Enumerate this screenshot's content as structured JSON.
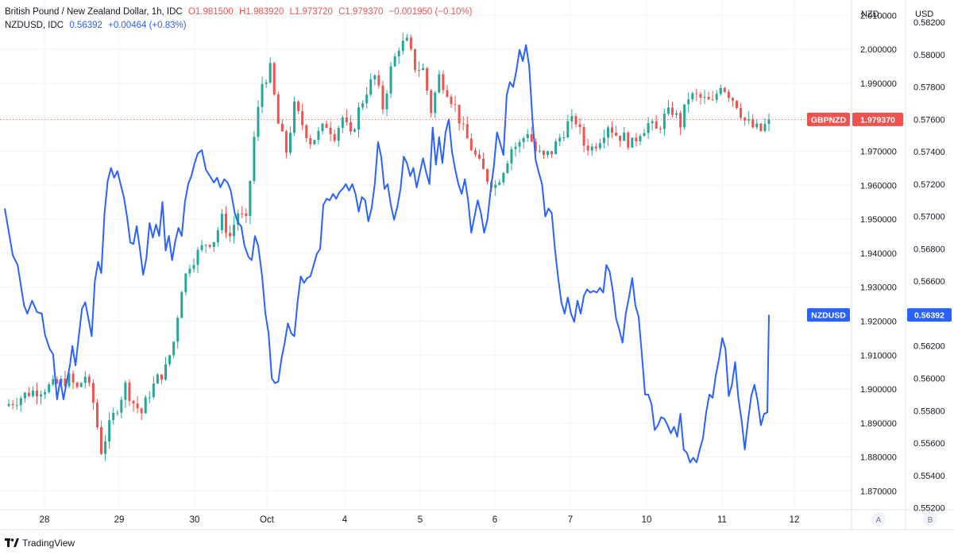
{
  "legend": {
    "main": {
      "name": "British Pound / New Zealand Dollar, 1h, IDC",
      "o": "O1.981500",
      "h": "H1.983920",
      "l": "L1.973720",
      "c": "C1.979370",
      "chg": "−0.001950 (−0.10%)"
    },
    "compare": {
      "name": "NZDUSD, IDC",
      "price": "0.56392",
      "chg": "+0.00464 (+0.83%)"
    }
  },
  "axes": {
    "left_unit": "NZD",
    "right_unit": "USD",
    "scale_a": "A",
    "scale_b": "B"
  },
  "branding": {
    "text": "TradingView"
  },
  "colors": {
    "up": "#26a69a",
    "down": "#ef5350",
    "nzdusd": "#2962ff",
    "grid": "#f0f3fa",
    "text": "#131722"
  },
  "chart_data": {
    "type": "line",
    "title": "British Pound / New Zealand Dollar, 1h, IDC",
    "x_labels": [
      "28",
      "29",
      "30",
      "Oct",
      "4",
      "5",
      "6",
      "7",
      "10",
      "11",
      "12"
    ],
    "gbpnzd": {
      "name": "GBPNZD",
      "axis": "NZD",
      "last_label": "1.979370",
      "ylim": [
        1.8645,
        2.0145
      ],
      "ticks": [
        "2.010000",
        "2.000000",
        "1.990000",
        "1.980000",
        "1.970000",
        "1.960000",
        "1.950000",
        "1.940000",
        "1.930000",
        "1.920000",
        "1.910000",
        "1.900000",
        "1.890000",
        "1.880000",
        "1.870000"
      ],
      "close_anchors": [
        [
          0,
          1.895
        ],
        [
          3,
          1.899
        ],
        [
          6,
          1.901
        ],
        [
          8,
          1.903
        ],
        [
          9,
          1.9
        ],
        [
          10,
          1.904
        ],
        [
          11,
          1.896
        ],
        [
          12,
          1.882
        ],
        [
          13,
          1.889
        ],
        [
          15,
          1.901
        ],
        [
          16,
          1.896
        ],
        [
          17,
          1.893
        ],
        [
          18,
          1.899
        ],
        [
          19,
          1.903
        ],
        [
          20,
          1.906
        ],
        [
          21,
          1.914
        ],
        [
          22,
          1.93
        ],
        [
          23,
          1.937
        ],
        [
          24,
          1.94
        ],
        [
          25,
          1.943
        ],
        [
          26,
          1.944
        ],
        [
          27,
          1.95
        ],
        [
          28,
          1.945
        ],
        [
          29,
          1.952
        ],
        [
          30,
          1.949
        ],
        [
          31,
          1.974
        ],
        [
          32,
          1.99
        ],
        [
          33,
          1.994
        ],
        [
          34,
          1.978
        ],
        [
          35,
          1.97
        ],
        [
          36,
          1.983
        ],
        [
          37,
          1.978
        ],
        [
          38,
          1.973
        ],
        [
          39,
          1.975
        ],
        [
          40,
          1.978
        ],
        [
          41,
          1.975
        ],
        [
          42,
          1.98
        ],
        [
          43,
          1.974
        ],
        [
          44,
          1.982
        ],
        [
          45,
          1.988
        ],
        [
          46,
          1.992
        ],
        [
          47,
          1.983
        ],
        [
          48,
          1.994
        ],
        [
          49,
          2.001
        ],
        [
          50,
          2.002
        ],
        [
          51,
          1.995
        ],
        [
          52,
          1.994
        ],
        [
          53,
          1.982
        ],
        [
          54,
          1.992
        ],
        [
          55,
          1.988
        ],
        [
          56,
          1.983
        ],
        [
          57,
          1.976
        ],
        [
          58,
          1.971
        ],
        [
          59,
          1.966
        ],
        [
          60,
          1.962
        ],
        [
          61,
          1.96
        ],
        [
          62,
          1.965
        ],
        [
          63,
          1.971
        ],
        [
          64,
          1.972
        ],
        [
          65,
          1.976
        ],
        [
          66,
          1.97
        ],
        [
          67,
          1.968
        ],
        [
          68,
          1.97
        ],
        [
          69,
          1.974
        ],
        [
          70,
          1.978
        ],
        [
          71,
          1.979
        ],
        [
          72,
          1.972
        ],
        [
          73,
          1.971
        ],
        [
          74,
          1.974
        ],
        [
          75,
          1.978
        ],
        [
          76,
          1.975
        ],
        [
          77,
          1.974
        ],
        [
          78,
          1.972
        ],
        [
          79,
          1.976
        ],
        [
          80,
          1.978
        ],
        [
          81,
          1.976
        ],
        [
          82,
          1.98
        ],
        [
          83,
          1.982
        ],
        [
          84,
          1.978
        ],
        [
          85,
          1.986
        ],
        [
          86,
          1.986
        ],
        [
          87,
          1.985
        ],
        [
          88,
          1.984
        ],
        [
          89,
          1.99
        ],
        [
          90,
          1.987
        ],
        [
          91,
          1.984
        ],
        [
          92,
          1.979
        ],
        [
          93,
          1.977
        ],
        [
          94,
          1.976
        ],
        [
          95,
          1.979
        ]
      ],
      "last": 1.97937
    },
    "nzdusd": {
      "name": "NZDUSD",
      "axis": "USD",
      "last_label": "0.56392",
      "ylim": [
        0.55188,
        0.58338
      ],
      "ticks": [
        "0.58200",
        "0.58000",
        "0.57800",
        "0.57600",
        "0.57400",
        "0.57200",
        "0.57000",
        "0.56800",
        "0.56600",
        "0.56400",
        "0.56200",
        "0.56000",
        "0.55800",
        "0.55600",
        "0.55400",
        "0.55200"
      ],
      "points": [
        [
          0,
          0.5705
        ],
        [
          1.0,
          0.5676
        ],
        [
          1.6,
          0.567
        ],
        [
          2.4,
          0.5645
        ],
        [
          2.8,
          0.564
        ],
        [
          3.4,
          0.5648
        ],
        [
          4.0,
          0.5641
        ],
        [
          4.6,
          0.564
        ],
        [
          5.0,
          0.5627
        ],
        [
          5.6,
          0.5618
        ],
        [
          6.0,
          0.5615
        ],
        [
          6.5,
          0.5587
        ],
        [
          6.9,
          0.5599
        ],
        [
          7.3,
          0.5587
        ],
        [
          7.7,
          0.5598
        ],
        [
          8.1,
          0.5608
        ],
        [
          8.4,
          0.562
        ],
        [
          8.8,
          0.5608
        ],
        [
          9.2,
          0.5626
        ],
        [
          9.6,
          0.5643
        ],
        [
          10.0,
          0.5647
        ],
        [
          10.4,
          0.5637
        ],
        [
          10.8,
          0.5626
        ],
        [
          11.2,
          0.566
        ],
        [
          11.6,
          0.5672
        ],
        [
          12.0,
          0.5665
        ],
        [
          12.4,
          0.5702
        ],
        [
          12.8,
          0.5722
        ],
        [
          13.2,
          0.573
        ],
        [
          13.6,
          0.5724
        ],
        [
          14.0,
          0.5728
        ],
        [
          14.4,
          0.572
        ],
        [
          14.8,
          0.5712
        ],
        [
          15.2,
          0.57
        ],
        [
          15.6,
          0.5684
        ],
        [
          16.0,
          0.5683
        ],
        [
          16.4,
          0.5694
        ],
        [
          16.8,
          0.568
        ],
        [
          17.2,
          0.5664
        ],
        [
          17.6,
          0.5674
        ],
        [
          18.0,
          0.5696
        ],
        [
          18.4,
          0.5687
        ],
        [
          18.8,
          0.5695
        ],
        [
          19.2,
          0.5688
        ],
        [
          19.6,
          0.5709
        ],
        [
          20.0,
          0.5679
        ],
        [
          20.4,
          0.5688
        ],
        [
          20.8,
          0.5673
        ],
        [
          21.2,
          0.5685
        ],
        [
          21.6,
          0.5693
        ],
        [
          22.0,
          0.5688
        ],
        [
          22.4,
          0.5709
        ],
        [
          22.8,
          0.572
        ],
        [
          23.2,
          0.5725
        ],
        [
          23.6,
          0.5733
        ],
        [
          24.0,
          0.5739
        ],
        [
          24.5,
          0.5741
        ],
        [
          25.0,
          0.5729
        ],
        [
          25.5,
          0.5725
        ],
        [
          26.0,
          0.5721
        ],
        [
          26.4,
          0.5724
        ],
        [
          26.8,
          0.5718
        ],
        [
          27.3,
          0.5723
        ],
        [
          27.7,
          0.5721
        ],
        [
          28.1,
          0.5716
        ],
        [
          28.6,
          0.5702
        ],
        [
          29.0,
          0.5696
        ],
        [
          29.4,
          0.5694
        ],
        [
          29.8,
          0.5682
        ],
        [
          30.3,
          0.5675
        ],
        [
          30.7,
          0.5673
        ],
        [
          31.1,
          0.5688
        ],
        [
          31.5,
          0.5682
        ],
        [
          32.0,
          0.5663
        ],
        [
          32.4,
          0.564
        ],
        [
          32.8,
          0.5628
        ],
        [
          33.2,
          0.56
        ],
        [
          33.6,
          0.5597
        ],
        [
          34.0,
          0.5598
        ],
        [
          34.4,
          0.5612
        ],
        [
          34.8,
          0.5622
        ],
        [
          35.2,
          0.5634
        ],
        [
          35.6,
          0.5628
        ],
        [
          36.0,
          0.5626
        ],
        [
          36.4,
          0.5647
        ],
        [
          36.8,
          0.5663
        ],
        [
          37.2,
          0.5659
        ],
        [
          37.6,
          0.5662
        ],
        [
          38.0,
          0.5663
        ],
        [
          38.4,
          0.567
        ],
        [
          38.8,
          0.5677
        ],
        [
          39.2,
          0.568
        ],
        [
          39.6,
          0.5707
        ],
        [
          40.0,
          0.5711
        ],
        [
          40.4,
          0.571
        ],
        [
          40.8,
          0.5714
        ],
        [
          41.2,
          0.5711
        ],
        [
          41.6,
          0.5715
        ],
        [
          42.0,
          0.5717
        ],
        [
          42.4,
          0.572
        ],
        [
          42.8,
          0.5716
        ],
        [
          43.2,
          0.572
        ],
        [
          43.6,
          0.5714
        ],
        [
          44.0,
          0.5703
        ],
        [
          44.4,
          0.5712
        ],
        [
          44.8,
          0.571
        ],
        [
          45.2,
          0.5697
        ],
        [
          45.6,
          0.5705
        ],
        [
          46.0,
          0.572
        ],
        [
          46.4,
          0.5746
        ],
        [
          46.8,
          0.5737
        ],
        [
          47.2,
          0.5717
        ],
        [
          47.6,
          0.572
        ],
        [
          48.0,
          0.5707
        ],
        [
          48.4,
          0.5698
        ],
        [
          48.8,
          0.5706
        ],
        [
          49.2,
          0.5717
        ],
        [
          49.6,
          0.5737
        ],
        [
          50.0,
          0.5733
        ],
        [
          50.4,
          0.5725
        ],
        [
          50.8,
          0.573
        ],
        [
          51.2,
          0.5718
        ],
        [
          51.6,
          0.5727
        ],
        [
          52.0,
          0.5736
        ],
        [
          52.4,
          0.5727
        ],
        [
          52.8,
          0.572
        ],
        [
          53.2,
          0.5755
        ],
        [
          53.6,
          0.5732
        ],
        [
          54.0,
          0.5749
        ],
        [
          54.4,
          0.5733
        ],
        [
          54.8,
          0.5752
        ],
        [
          55.2,
          0.576
        ],
        [
          55.6,
          0.574
        ],
        [
          56.0,
          0.5729
        ],
        [
          56.4,
          0.572
        ],
        [
          56.8,
          0.5714
        ],
        [
          57.2,
          0.5723
        ],
        [
          57.6,
          0.571
        ],
        [
          58.0,
          0.569
        ],
        [
          58.4,
          0.57
        ],
        [
          58.8,
          0.571
        ],
        [
          59.2,
          0.5702
        ],
        [
          59.6,
          0.569
        ],
        [
          60.0,
          0.5698
        ],
        [
          60.4,
          0.5716
        ],
        [
          60.8,
          0.5731
        ],
        [
          61.2,
          0.5752
        ],
        [
          61.6,
          0.5745
        ],
        [
          62.0,
          0.5738
        ],
        [
          62.4,
          0.5775
        ],
        [
          62.8,
          0.5783
        ],
        [
          63.2,
          0.578
        ],
        [
          63.6,
          0.579
        ],
        [
          64.0,
          0.5803
        ],
        [
          64.4,
          0.5796
        ],
        [
          64.8,
          0.5806
        ],
        [
          65.2,
          0.5793
        ],
        [
          65.6,
          0.576
        ],
        [
          66.0,
          0.5735
        ],
        [
          66.4,
          0.5727
        ],
        [
          66.8,
          0.572
        ],
        [
          67.2,
          0.57
        ],
        [
          67.6,
          0.5705
        ],
        [
          68.0,
          0.5702
        ],
        [
          68.4,
          0.568
        ],
        [
          68.8,
          0.5662
        ],
        [
          69.2,
          0.5647
        ],
        [
          69.6,
          0.564
        ],
        [
          70.0,
          0.565
        ],
        [
          70.4,
          0.564
        ],
        [
          70.8,
          0.5635
        ],
        [
          71.2,
          0.5648
        ],
        [
          71.6,
          0.564
        ],
        [
          72.0,
          0.5651
        ],
        [
          72.4,
          0.5655
        ],
        [
          72.8,
          0.5653
        ],
        [
          73.2,
          0.5654
        ],
        [
          73.6,
          0.5653
        ],
        [
          74.0,
          0.5656
        ],
        [
          74.4,
          0.5653
        ],
        [
          74.8,
          0.567
        ],
        [
          75.2,
          0.5666
        ],
        [
          75.6,
          0.5654
        ],
        [
          76.0,
          0.5637
        ],
        [
          76.4,
          0.563
        ],
        [
          76.8,
          0.5622
        ],
        [
          77.2,
          0.564
        ],
        [
          77.6,
          0.565
        ],
        [
          78.0,
          0.5662
        ],
        [
          78.4,
          0.5645
        ],
        [
          78.8,
          0.5638
        ],
        [
          79.2,
          0.5615
        ],
        [
          79.6,
          0.559
        ],
        [
          80.0,
          0.559
        ],
        [
          80.4,
          0.5584
        ],
        [
          80.8,
          0.5568
        ],
        [
          81.2,
          0.5571
        ],
        [
          81.6,
          0.5576
        ],
        [
          82.0,
          0.5575
        ],
        [
          82.4,
          0.5571
        ],
        [
          82.8,
          0.5566
        ],
        [
          83.2,
          0.557
        ],
        [
          83.6,
          0.5564
        ],
        [
          84.0,
          0.5578
        ],
        [
          84.4,
          0.5556
        ],
        [
          84.8,
          0.5554
        ],
        [
          85.2,
          0.5548
        ],
        [
          85.6,
          0.5551
        ],
        [
          86.0,
          0.5548
        ],
        [
          86.4,
          0.5556
        ],
        [
          86.8,
          0.5563
        ],
        [
          87.2,
          0.5579
        ],
        [
          87.6,
          0.559
        ],
        [
          88.0,
          0.5588
        ],
        [
          88.4,
          0.5602
        ],
        [
          88.8,
          0.5612
        ],
        [
          89.2,
          0.5625
        ],
        [
          89.6,
          0.5618
        ],
        [
          90.0,
          0.5589
        ],
        [
          90.4,
          0.5596
        ],
        [
          90.8,
          0.561
        ],
        [
          91.2,
          0.5588
        ],
        [
          91.6,
          0.5574
        ],
        [
          92.0,
          0.5556
        ],
        [
          92.4,
          0.5574
        ],
        [
          92.8,
          0.5589
        ],
        [
          93.2,
          0.5596
        ],
        [
          93.6,
          0.5586
        ],
        [
          94.0,
          0.5571
        ],
        [
          94.4,
          0.5578
        ],
        [
          94.8,
          0.5579
        ],
        [
          95.0,
          0.56392
        ]
      ]
    }
  }
}
